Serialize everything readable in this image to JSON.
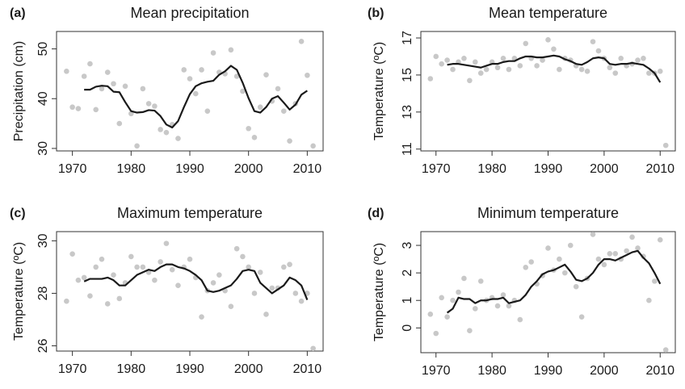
{
  "chart_data": [
    {
      "type": "scatter",
      "label": "(a)",
      "title": "Mean precipitation",
      "ylabel": "Precipitation (cm)",
      "xlim": [
        1967.3,
        2012.7
      ],
      "xticks": [
        1970,
        1980,
        1990,
        2000,
        2010
      ],
      "ylim": [
        29.5,
        53.5
      ],
      "yticks": [
        30,
        40,
        50
      ],
      "series": [
        {
          "type": "scatter",
          "color": "#c8c8c8",
          "x": [
            1969,
            1970,
            1971,
            1972,
            1973,
            1974,
            1975,
            1976,
            1977,
            1978,
            1979,
            1980,
            1981,
            1982,
            1983,
            1984,
            1985,
            1986,
            1987,
            1988,
            1989,
            1990,
            1991,
            1992,
            1993,
            1994,
            1995,
            1996,
            1997,
            1998,
            1999,
            2000,
            2001,
            2002,
            2003,
            2004,
            2005,
            2006,
            2007,
            2008,
            2009,
            2010,
            2011
          ],
          "values": [
            45.5,
            38.3,
            38,
            44.5,
            47,
            37.8,
            42,
            45.3,
            43,
            35,
            42.5,
            37,
            30.5,
            42,
            39,
            38.5,
            33.8,
            33.2,
            34.8,
            32,
            45.8,
            44,
            41,
            45.8,
            37.5,
            49.2,
            45.3,
            45,
            49.8,
            44.5,
            41.5,
            34,
            32.2,
            38.3,
            44.8,
            39.5,
            42,
            37.5,
            31.5,
            39,
            51.5,
            44.7,
            30.5
          ]
        },
        {
          "type": "line",
          "color": "#1a1a1a",
          "x": [
            1972,
            1973,
            1974,
            1975,
            1976,
            1977,
            1978,
            1979,
            1980,
            1981,
            1982,
            1983,
            1984,
            1985,
            1986,
            1987,
            1988,
            1989,
            1990,
            1991,
            1992,
            1993,
            1994,
            1995,
            1996,
            1997,
            1998,
            1999,
            2000,
            2001,
            2002,
            2003,
            2004,
            2005,
            2006,
            2007,
            2008,
            2009,
            2010
          ],
          "values": [
            41.8,
            41.8,
            42.4,
            42.6,
            42.5,
            41.4,
            41.3,
            39.3,
            37.5,
            37.2,
            37.3,
            37.7,
            37.6,
            36.5,
            34.8,
            34.2,
            35.5,
            38.3,
            40.9,
            42.5,
            43.1,
            43.4,
            43.6,
            44.8,
            45.5,
            46.6,
            45.8,
            43.2,
            40.1,
            37.5,
            37.2,
            38.3,
            40,
            40.5,
            39.2,
            37.8,
            38.8,
            40.8,
            41.6
          ]
        }
      ]
    },
    {
      "type": "scatter",
      "label": "(b)",
      "title": "Mean temperature",
      "ylabel": "Temperature (ºC)",
      "xlim": [
        1967.3,
        2012.7
      ],
      "xticks": [
        1970,
        1980,
        1990,
        2000,
        2010
      ],
      "ylim": [
        10.9,
        17.35
      ],
      "yticks": [
        11,
        13,
        15,
        17
      ],
      "series": [
        {
          "type": "scatter",
          "color": "#c8c8c8",
          "x": [
            1969,
            1970,
            1971,
            1972,
            1973,
            1974,
            1975,
            1976,
            1977,
            1978,
            1979,
            1980,
            1981,
            1982,
            1983,
            1984,
            1985,
            1986,
            1987,
            1988,
            1989,
            1990,
            1991,
            1992,
            1993,
            1994,
            1995,
            1996,
            1997,
            1998,
            1999,
            2000,
            2001,
            2002,
            2003,
            2004,
            2005,
            2006,
            2007,
            2008,
            2009,
            2010,
            2011
          ],
          "values": [
            14.8,
            16,
            15.6,
            15.8,
            15.3,
            15.7,
            15.9,
            14.7,
            15.7,
            15.1,
            15.3,
            15.7,
            15.4,
            15.9,
            15.3,
            15.9,
            15.5,
            16.7,
            15.9,
            15.5,
            15.8,
            16.9,
            16.4,
            15.3,
            15.9,
            15.8,
            15.5,
            15.3,
            15.2,
            16.8,
            16.3,
            15.9,
            15.4,
            15.1,
            15.9,
            15.5,
            15.6,
            15.8,
            15.9,
            15.1,
            15.1,
            15.2,
            11.2
          ]
        },
        {
          "type": "line",
          "color": "#1a1a1a",
          "x": [
            1972,
            1973,
            1974,
            1975,
            1976,
            1977,
            1978,
            1979,
            1980,
            1981,
            1982,
            1983,
            1984,
            1985,
            1986,
            1987,
            1988,
            1989,
            1990,
            1991,
            1992,
            1993,
            1994,
            1995,
            1996,
            1997,
            1998,
            1999,
            2000,
            2001,
            2002,
            2003,
            2004,
            2005,
            2006,
            2007,
            2008,
            2009,
            2010
          ],
          "values": [
            15.55,
            15.6,
            15.6,
            15.55,
            15.5,
            15.45,
            15.4,
            15.5,
            15.6,
            15.6,
            15.7,
            15.75,
            15.75,
            15.9,
            16,
            16,
            15.95,
            15.95,
            16,
            16.05,
            16,
            15.85,
            15.75,
            15.6,
            15.55,
            15.7,
            15.9,
            15.95,
            15.9,
            15.6,
            15.55,
            15.6,
            15.6,
            15.65,
            15.6,
            15.55,
            15.35,
            15.1,
            14.6
          ]
        }
      ]
    },
    {
      "type": "scatter",
      "label": "(c)",
      "title": "Maximum temperature",
      "ylabel": "Temperature (ºC)",
      "xlim": [
        1967.3,
        2012.7
      ],
      "xticks": [
        1970,
        1980,
        1990,
        2000,
        2010
      ],
      "ylim": [
        25.8,
        30.35
      ],
      "yticks": [
        26,
        28,
        30
      ],
      "series": [
        {
          "type": "scatter",
          "color": "#c8c8c8",
          "x": [
            1969,
            1970,
            1971,
            1972,
            1973,
            1974,
            1975,
            1976,
            1977,
            1978,
            1979,
            1980,
            1981,
            1982,
            1983,
            1984,
            1985,
            1986,
            1987,
            1988,
            1989,
            1990,
            1991,
            1992,
            1993,
            1994,
            1995,
            1996,
            1997,
            1998,
            1999,
            2000,
            2001,
            2002,
            2003,
            2004,
            2005,
            2006,
            2007,
            2008,
            2009,
            2010,
            2011
          ],
          "values": [
            27.7,
            29.5,
            28.5,
            28.6,
            27.9,
            29,
            29.3,
            27.6,
            28.7,
            27.8,
            28.4,
            29.4,
            29,
            29,
            28.8,
            28.5,
            29.2,
            29.9,
            28.9,
            28.3,
            29,
            29.3,
            28.6,
            27.1,
            28.1,
            28.4,
            28.7,
            28.1,
            27.5,
            29.7,
            29.4,
            29,
            28,
            28.8,
            27.2,
            28.2,
            28.2,
            29,
            29.1,
            28,
            27.7,
            28,
            25.9
          ]
        },
        {
          "type": "line",
          "color": "#1a1a1a",
          "x": [
            1972,
            1973,
            1974,
            1975,
            1976,
            1977,
            1978,
            1979,
            1980,
            1981,
            1982,
            1983,
            1984,
            1985,
            1986,
            1987,
            1988,
            1989,
            1990,
            1991,
            1992,
            1993,
            1994,
            1995,
            1996,
            1997,
            1998,
            1999,
            2000,
            2001,
            2002,
            2003,
            2004,
            2005,
            2006,
            2007,
            2008,
            2009,
            2010
          ],
          "values": [
            28.45,
            28.55,
            28.55,
            28.55,
            28.6,
            28.5,
            28.3,
            28.3,
            28.5,
            28.7,
            28.8,
            28.9,
            28.85,
            29,
            29.1,
            29.1,
            29,
            28.95,
            28.85,
            28.7,
            28.5,
            28.1,
            28.05,
            28.1,
            28.2,
            28.3,
            28.55,
            28.85,
            28.9,
            28.85,
            28.4,
            28.2,
            28,
            28.15,
            28.3,
            28.6,
            28.5,
            28.3,
            27.75
          ]
        }
      ]
    },
    {
      "type": "scatter",
      "label": "(d)",
      "title": "Minimum temperature",
      "ylabel": "Temperature (ºC)",
      "xlim": [
        1967.3,
        2012.7
      ],
      "xticks": [
        1970,
        1980,
        1990,
        2000,
        2010
      ],
      "ylim": [
        -0.9,
        3.5
      ],
      "yticks": [
        0,
        1,
        2,
        3
      ],
      "series": [
        {
          "type": "scatter",
          "color": "#c8c8c8",
          "x": [
            1969,
            1970,
            1971,
            1972,
            1973,
            1974,
            1975,
            1976,
            1977,
            1978,
            1979,
            1980,
            1981,
            1982,
            1983,
            1984,
            1985,
            1986,
            1987,
            1988,
            1989,
            1990,
            1991,
            1992,
            1993,
            1994,
            1995,
            1996,
            1997,
            1998,
            1999,
            2000,
            2001,
            2002,
            2003,
            2004,
            2005,
            2006,
            2007,
            2008,
            2009,
            2010,
            2011
          ],
          "values": [
            0.5,
            -0.2,
            1.1,
            0.4,
            1,
            1.3,
            1.8,
            -0.1,
            0.7,
            1.7,
            1,
            1.1,
            0.8,
            1.2,
            0.8,
            1,
            0.3,
            2.2,
            2.4,
            1.6,
            1.9,
            2.9,
            2.1,
            2.5,
            2,
            3,
            1.5,
            0.4,
            1.8,
            3.4,
            2.5,
            2.3,
            2.7,
            2.7,
            2.5,
            2.8,
            3.3,
            2.9,
            2.6,
            1,
            1.7,
            3.2,
            -0.8
          ]
        },
        {
          "type": "line",
          "color": "#1a1a1a",
          "x": [
            1972,
            1973,
            1974,
            1975,
            1976,
            1977,
            1978,
            1979,
            1980,
            1981,
            1982,
            1983,
            1984,
            1985,
            1986,
            1987,
            1988,
            1989,
            1990,
            1991,
            1992,
            1993,
            1994,
            1995,
            1996,
            1997,
            1998,
            1999,
            2000,
            2001,
            2002,
            2003,
            2004,
            2005,
            2006,
            2007,
            2008,
            2009,
            2010
          ],
          "values": [
            0.55,
            0.7,
            1.1,
            1.05,
            1.05,
            0.9,
            1,
            1,
            1.05,
            1.05,
            1.1,
            0.9,
            0.95,
            1,
            1.2,
            1.5,
            1.7,
            1.95,
            2.05,
            2.1,
            2.2,
            2.3,
            2.05,
            1.75,
            1.7,
            1.8,
            2,
            2.3,
            2.5,
            2.5,
            2.45,
            2.55,
            2.65,
            2.75,
            2.8,
            2.55,
            2.35,
            2,
            1.6
          ]
        }
      ]
    }
  ]
}
